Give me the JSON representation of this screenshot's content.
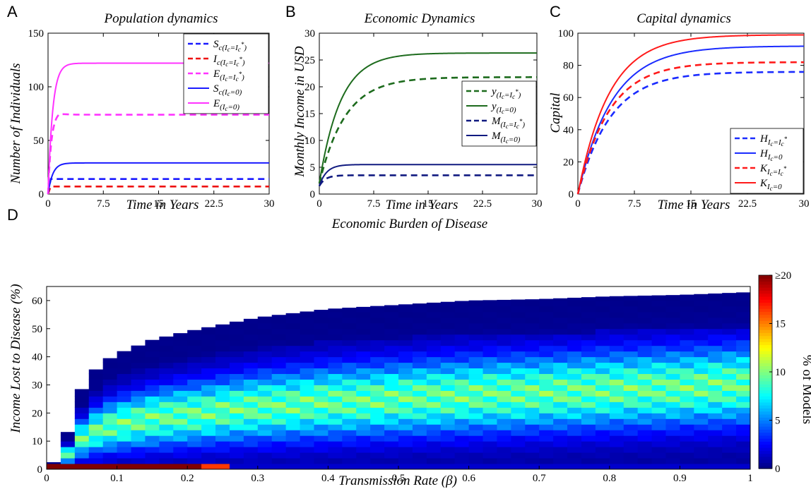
{
  "colors": {
    "blue": "#1a1aff",
    "red": "#ee1111",
    "magenta": "#ff33ff",
    "dark_green": "#1d6b1d",
    "navy": "#101a80",
    "bright_blue": "#1a2bff",
    "bright_red": "#ff1a1a"
  },
  "chart_data": [
    {
      "type": "line",
      "panel_label": "A",
      "title": "Population dynamics",
      "xlabel": "Time in Years",
      "ylabel": "Number of Individuals",
      "xlim": [
        0,
        30
      ],
      "ylim": [
        0,
        150
      ],
      "xticks": [
        "0",
        "7.5",
        "15",
        "22.5",
        "30"
      ],
      "yticks": [
        "0",
        "50",
        "100",
        "150"
      ],
      "legend_position": "top-right",
      "series": [
        {
          "name": "S_c(I_c=I_c*)",
          "label_main": "S",
          "label_sub": "c(I",
          "label_sub2": "c",
          "label_tail": "=I",
          "label_tail2": "c",
          "label_sup": "*",
          "label_end": ")",
          "color_key": "blue",
          "dash": true,
          "initial": 0,
          "plateau": 14,
          "rate": 3.0,
          "shape": "flat-early"
        },
        {
          "name": "I_c(I_c=I_c*)",
          "label_main": "I",
          "label_sub": "c(I",
          "label_sub2": "c",
          "label_tail": "=I",
          "label_tail2": "c",
          "label_sup": "*",
          "label_end": ")",
          "color_key": "red",
          "dash": true,
          "initial": 0,
          "plateau": 7,
          "rate": 3.0,
          "shape": "flat-early"
        },
        {
          "name": "E(I_c=I_c*)",
          "label_main": "E",
          "label_sub": "(I",
          "label_sub2": "c",
          "label_tail": "=I",
          "label_tail2": "c",
          "label_sup": "*",
          "label_end": ")",
          "color_key": "magenta",
          "dash": true,
          "initial": 0,
          "plateau": 74,
          "rate": 2.2,
          "overshoot": 3,
          "shape": "overshoot"
        },
        {
          "name": "S_c(I_c=0)",
          "label_main": "S",
          "label_sub": "c(I",
          "label_sub2": "c",
          "label_tail": "=0)",
          "label_tail2": "",
          "label_sup": "",
          "label_end": "",
          "color_key": "blue",
          "dash": false,
          "initial": 0,
          "plateau": 29,
          "rate": 1.6,
          "shape": "rise"
        },
        {
          "name": "E(I_c=0)",
          "label_main": "E",
          "label_sub": "(I",
          "label_sub2": "c",
          "label_tail": "=0)",
          "label_tail2": "",
          "label_sup": "",
          "label_end": "",
          "color_key": "magenta",
          "dash": false,
          "initial": 0,
          "plateau": 122,
          "rate": 1.6,
          "shape": "rise"
        }
      ]
    },
    {
      "type": "line",
      "panel_label": "B",
      "title": "Economic Dynamics",
      "xlabel": "Time in Years",
      "ylabel": "Monthly Income in USD",
      "xlim": [
        0,
        30
      ],
      "ylim": [
        0,
        30
      ],
      "xticks": [
        "0",
        "7.5",
        "15",
        "22.5",
        "30"
      ],
      "yticks": [
        "0",
        "5",
        "10",
        "15",
        "20",
        "25",
        "30"
      ],
      "legend_position": "center-right",
      "series": [
        {
          "name": "y(I_c=I_c*)",
          "label_main": "y",
          "label_sub": "(I",
          "label_sub2": "c",
          "label_tail": "=I",
          "label_tail2": "c",
          "label_sup": "*",
          "label_end": ")",
          "color_key": "dark_green",
          "dash": true,
          "initial": 2,
          "plateau": 21.8,
          "rate": 0.28,
          "shape": "rise"
        },
        {
          "name": "y(I_c=0)",
          "label_main": "y",
          "label_sub": "(I",
          "label_sub2": "c",
          "label_tail": "=0)",
          "label_tail2": "",
          "label_sup": "",
          "label_end": "",
          "color_key": "dark_green",
          "dash": false,
          "initial": 2,
          "plateau": 26.3,
          "rate": 0.34,
          "shape": "rise"
        },
        {
          "name": "M(I_c=I_c*)",
          "label_main": "M",
          "label_sub": "(I",
          "label_sub2": "c",
          "label_tail": "=I",
          "label_tail2": "c",
          "label_sup": "*",
          "label_end": ")",
          "color_key": "navy",
          "dash": true,
          "initial": 1.5,
          "plateau": 3.5,
          "rate": 1.2,
          "shape": "rise"
        },
        {
          "name": "M(I_c=0)",
          "label_main": "M",
          "label_sub": "(I",
          "label_sub2": "c",
          "label_tail": "=0)",
          "label_tail2": "",
          "label_sup": "",
          "label_end": "",
          "color_key": "navy",
          "dash": false,
          "initial": 1.5,
          "plateau": 5.5,
          "rate": 1.0,
          "shape": "rise"
        }
      ]
    },
    {
      "type": "line",
      "panel_label": "C",
      "title": "Capital dynamics",
      "xlabel": "Time in Years",
      "ylabel": "Capital",
      "xlim": [
        0,
        30
      ],
      "ylim": [
        0,
        100
      ],
      "xticks": [
        "0",
        "7.5",
        "15",
        "22.5",
        "30"
      ],
      "yticks": [
        "0",
        "20",
        "40",
        "60",
        "80",
        "100"
      ],
      "legend_position": "bottom-right",
      "series": [
        {
          "name": "H_{Ic=Ic*}",
          "label_main": "H",
          "label_sub": "I",
          "label_sub2": "c",
          "label_tail": "=I",
          "label_tail2": "c",
          "label_sup": "*",
          "label_end": "",
          "color_key": "bright_blue",
          "dash": true,
          "initial": 0,
          "plateau": 76,
          "rate": 0.23,
          "shape": "rise"
        },
        {
          "name": "H_{Ic=0}",
          "label_main": "H",
          "label_sub": "I",
          "label_sub2": "c",
          "label_tail": "=0",
          "label_tail2": "",
          "label_sup": "",
          "label_end": "",
          "color_key": "bright_blue",
          "dash": false,
          "initial": 0,
          "plateau": 92,
          "rate": 0.22,
          "shape": "rise"
        },
        {
          "name": "K_{Ic=Ic*}",
          "label_main": "K",
          "label_sub": "I",
          "label_sub2": "c",
          "label_tail": "=I",
          "label_tail2": "c",
          "label_sup": "*",
          "label_end": "",
          "color_key": "bright_red",
          "dash": true,
          "initial": 0,
          "plateau": 82,
          "rate": 0.24,
          "shape": "rise"
        },
        {
          "name": "K_{Ic=0}",
          "label_main": "K",
          "label_sub": "I",
          "label_sub2": "c",
          "label_tail": "=0",
          "label_tail2": "",
          "label_sup": "",
          "label_end": "",
          "color_key": "bright_red",
          "dash": false,
          "initial": 0,
          "plateau": 99,
          "rate": 0.24,
          "shape": "rise"
        }
      ]
    },
    {
      "type": "heatmap",
      "panel_label": "D",
      "title": "Economic Burden of Disease",
      "xlabel": "Transmission Rate (β)",
      "ylabel": "Income Lost to Disease (%)",
      "xlim": [
        0,
        1
      ],
      "ylim": [
        0,
        65
      ],
      "xticks": [
        "0",
        "0.1",
        "0.2",
        "0.3",
        "0.4",
        "0.5",
        "0.6",
        "0.7",
        "0.8",
        "0.9",
        "1"
      ],
      "yticks": [
        "0",
        "10",
        "20",
        "30",
        "40",
        "50",
        "60"
      ],
      "colorbar_label": "% of Models",
      "colorbar_range": [
        0,
        20
      ],
      "colorbar_ticks": [
        "0",
        "5",
        "10",
        "15",
        "≥20"
      ],
      "columns": 50,
      "bin_height": 2,
      "max_extent_by_beta": [
        [
          0.02,
          2.5
        ],
        [
          0.04,
          24
        ],
        [
          0.06,
          33
        ],
        [
          0.08,
          38
        ],
        [
          0.1,
          41
        ],
        [
          0.15,
          46
        ],
        [
          0.2,
          49
        ],
        [
          0.3,
          54
        ],
        [
          0.4,
          57
        ],
        [
          0.5,
          58.5
        ],
        [
          0.6,
          60
        ],
        [
          0.7,
          60.5
        ],
        [
          0.8,
          61.5
        ],
        [
          0.9,
          62
        ],
        [
          1.0,
          63
        ]
      ]
    }
  ]
}
